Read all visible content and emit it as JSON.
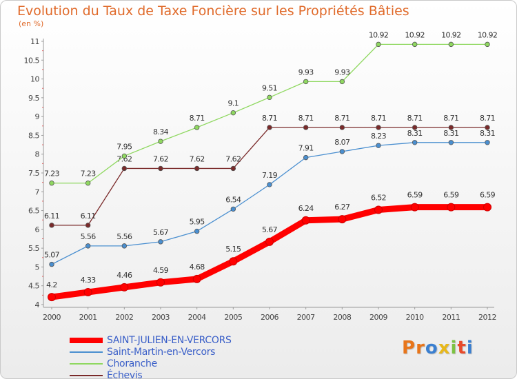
{
  "page": {
    "title": "Evolution du Taux de Taxe Foncière sur les Propriétés Bâties",
    "subtitle": "(en %)"
  },
  "logo": {
    "text": "Proxiti",
    "letter_colors": [
      "#e8751a",
      "#e8751a",
      "#3a7fd0",
      "#e8b81a",
      "#7cc242",
      "#e84a2a",
      "#3a7fd0"
    ]
  },
  "chart_data": {
    "type": "line",
    "x": [
      "2000",
      "2001",
      "2002",
      "2003",
      "2004",
      "2005",
      "2006",
      "2007",
      "2008",
      "2009",
      "2010",
      "2011",
      "2012"
    ],
    "ylim": [
      4,
      11
    ],
    "yticks": [
      "4",
      "4.5",
      "5",
      "5.5",
      "6",
      "6.5",
      "7",
      "7.5",
      "8",
      "8.5",
      "9",
      "9.5",
      "10",
      "10.5",
      "11"
    ],
    "grid": false,
    "series": [
      {
        "name": "SAINT-JULIEN-EN-VERCORS",
        "color": "#ff0000",
        "values": [
          4.2,
          4.33,
          4.46,
          4.59,
          4.68,
          5.15,
          5.67,
          6.24,
          6.27,
          6.52,
          6.59,
          6.59,
          6.59
        ],
        "labels": [
          "4.2",
          "4.33",
          "4.46",
          "4.59",
          "4.68",
          "5.15",
          "5.67",
          "6.24",
          "6.27",
          "6.52",
          "6.59",
          "6.59",
          "6.59"
        ]
      },
      {
        "name": "Saint-Martin-en-Vercors",
        "color": "#4a8fd0",
        "values": [
          5.07,
          5.56,
          5.56,
          5.67,
          5.95,
          6.54,
          7.19,
          7.91,
          8.07,
          8.23,
          8.31,
          8.31,
          8.31
        ],
        "labels": [
          "5.07",
          "5.56",
          "5.56",
          "5.67",
          "5.95",
          "6.54",
          "7.19",
          "7.91",
          "8.07",
          "8.23",
          "8.31",
          "8.31",
          "8.31"
        ]
      },
      {
        "name": "Choranche",
        "color": "#8fd860",
        "values": [
          7.23,
          7.23,
          7.95,
          8.34,
          8.71,
          9.1,
          9.51,
          9.93,
          9.93,
          10.92,
          10.92,
          10.92,
          10.92
        ],
        "labels": [
          "7.23",
          "7.23",
          "7.95",
          "8.34",
          "8.71",
          "9.1",
          "9.51",
          "9.93",
          "9.93",
          "10.92",
          "10.92",
          "10.92",
          "10.92"
        ]
      },
      {
        "name": "Échevis",
        "color": "#7a2a2a",
        "values": [
          6.11,
          6.11,
          7.62,
          7.62,
          7.62,
          7.62,
          8.71,
          8.71,
          8.71,
          8.71,
          8.71,
          8.71,
          8.71
        ],
        "labels": [
          "6.11",
          "6.11",
          "7.62",
          "7.62",
          "7.62",
          "7.62",
          "8.71",
          "8.71",
          "8.71",
          "8.71",
          "8.71",
          "8.71",
          "8.71"
        ]
      }
    ],
    "legend_placement": "bottom-left"
  }
}
